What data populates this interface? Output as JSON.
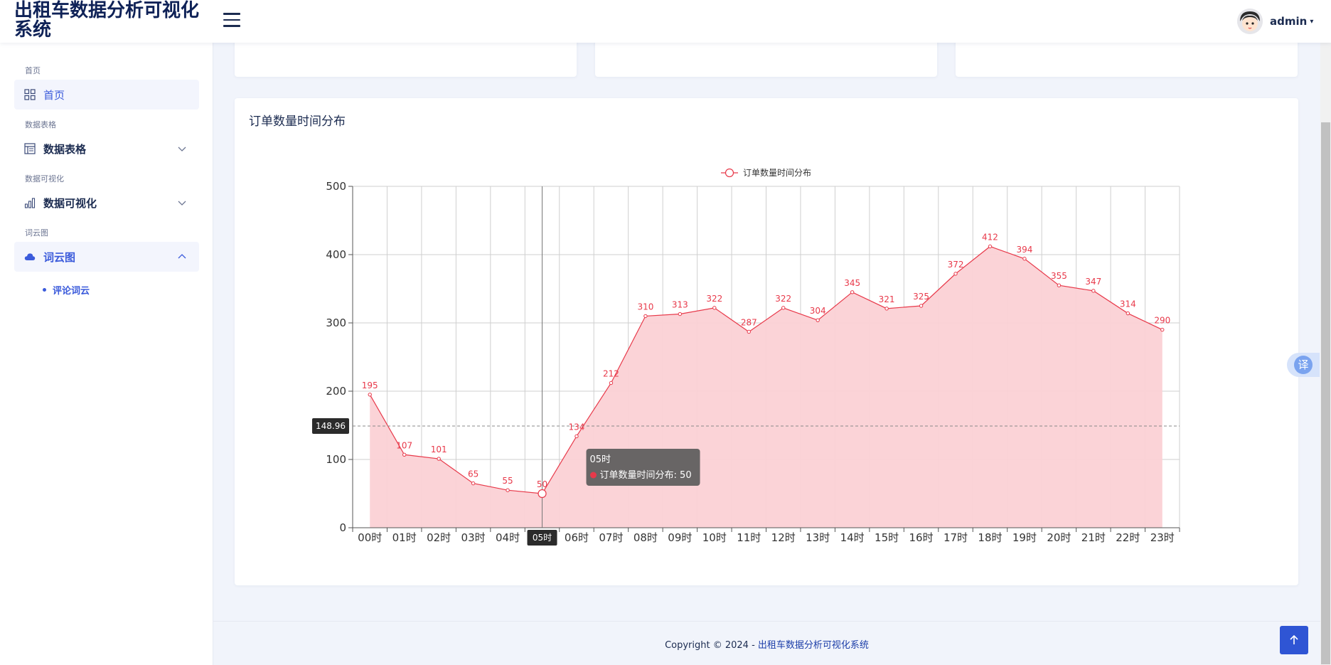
{
  "app": {
    "title": "出租车数据分析可视化系统"
  },
  "header": {
    "user_name": "admin"
  },
  "sidebar": {
    "sections": [
      {
        "label": "首页",
        "item": "首页"
      },
      {
        "label": "数据表格",
        "item": "数据表格"
      },
      {
        "label": "数据可视化",
        "item": "数据可视化"
      },
      {
        "label": "词云图",
        "item": "词云图"
      }
    ],
    "sub_item": "评论词云"
  },
  "colors": {
    "accent": "#3b5bdb",
    "series": "#e8394a",
    "area": "#fbd1d5",
    "card1": "#ede9fb",
    "card2": "#dcf5e4",
    "card3": "#fde6dc"
  },
  "icons": {
    "home": "grid-icon",
    "table": "table-icon",
    "viz": "bar-chart-icon",
    "cloud": "cloud-icon",
    "menu": "hamburger-icon",
    "translate": "translate-icon",
    "top": "arrow-up-icon"
  },
  "translate_label": "译",
  "chart": {
    "title": "订单数量时间分布",
    "legend": "订单数量时间分布",
    "tooltip": {
      "title": "05时",
      "series": "订单数量时间分布",
      "value": 50
    },
    "crosshair_x": "05时",
    "crosshair_y": "148.96"
  },
  "chart_data": {
    "type": "area",
    "categories": [
      "00时",
      "01时",
      "02时",
      "03时",
      "04时",
      "05时",
      "06时",
      "07时",
      "08时",
      "09时",
      "10时",
      "11时",
      "12时",
      "13时",
      "14时",
      "15时",
      "16时",
      "17时",
      "18时",
      "19时",
      "20时",
      "21时",
      "22时",
      "23时"
    ],
    "series": [
      {
        "name": "订单数量时间分布",
        "values": [
          195,
          107,
          101,
          65,
          55,
          50,
          134,
          212,
          310,
          313,
          322,
          287,
          322,
          304,
          345,
          321,
          325,
          372,
          412,
          394,
          355,
          347,
          314,
          290
        ]
      }
    ],
    "yticks": [
      0,
      100,
      200,
      300,
      400,
      500
    ],
    "ylim": [
      0,
      500
    ],
    "grid": true,
    "legend_position": "top-center"
  },
  "footer": {
    "prefix": "Copyright © 2024 - ",
    "brand": "出租车数据分析可视化系统"
  }
}
